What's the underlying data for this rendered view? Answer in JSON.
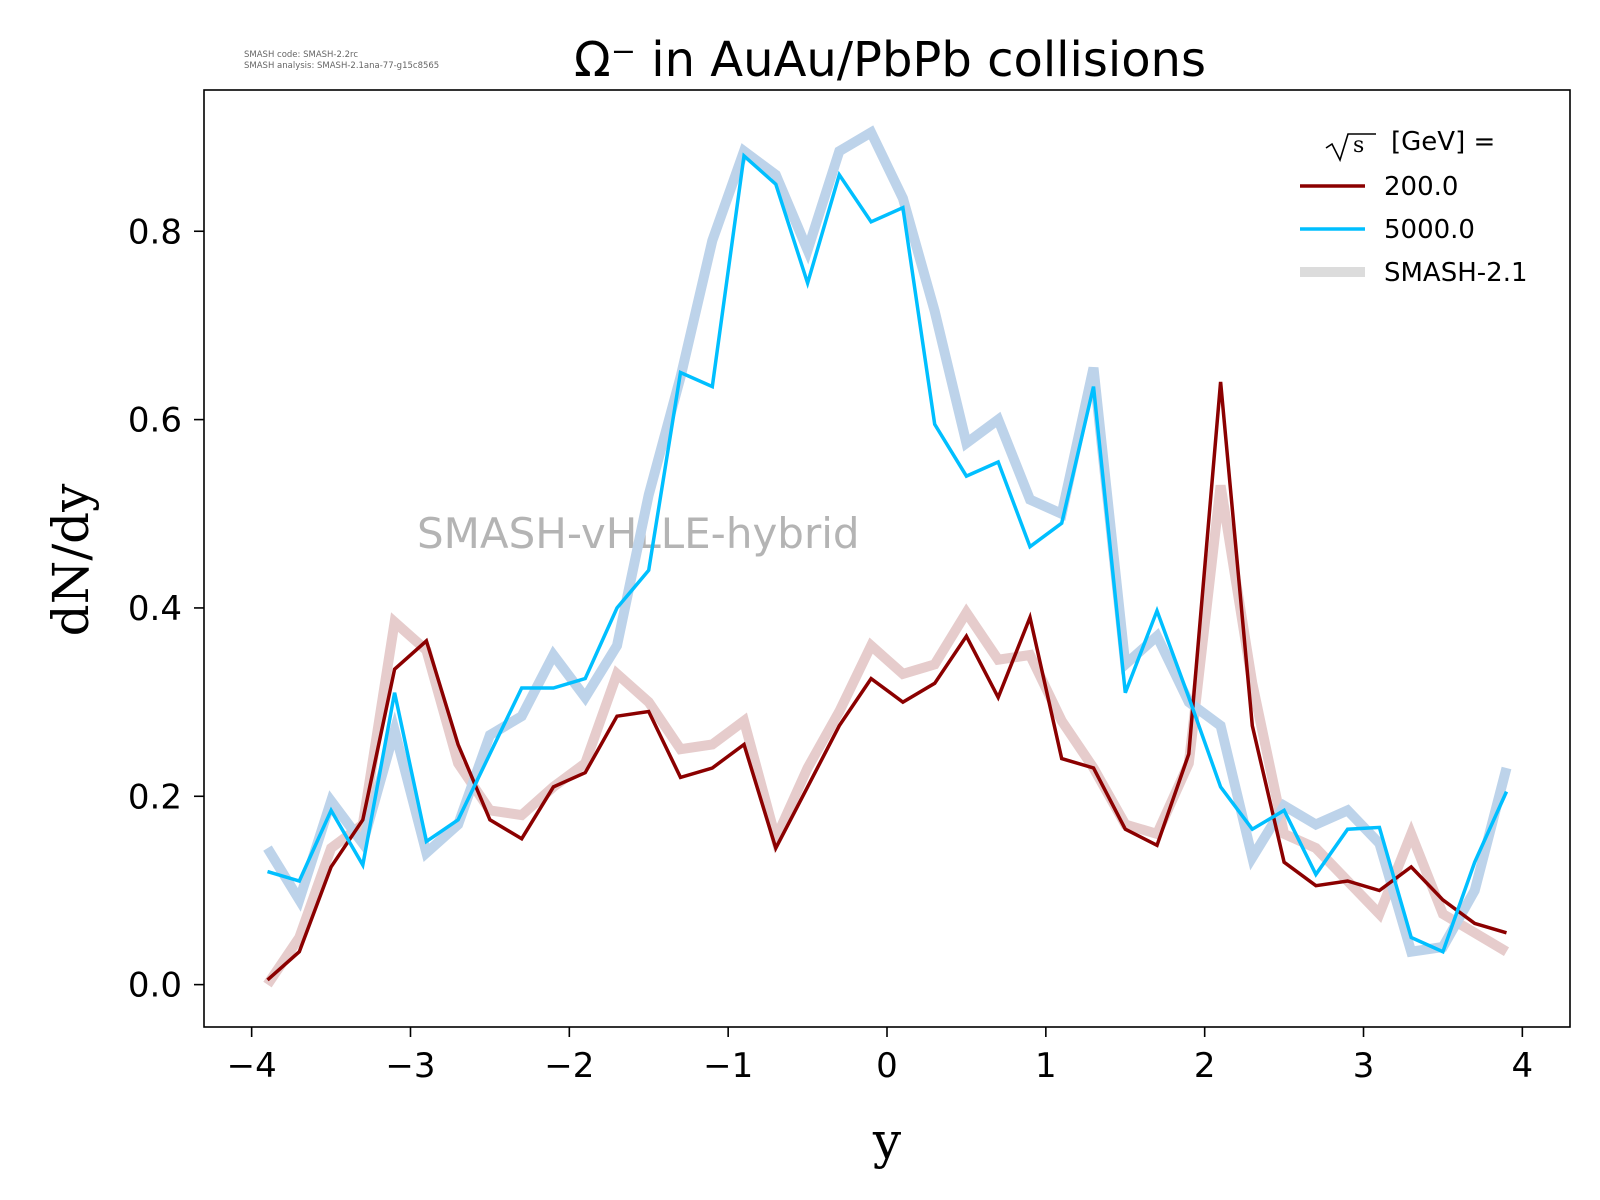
{
  "chart_data": {
    "type": "line",
    "title": "Ω⁻ in AuAu/PbPb collisions",
    "xlabel": "y",
    "ylabel": "dN/dy",
    "xlim": [
      -4.3,
      4.3
    ],
    "ylim": [
      -0.045,
      0.95
    ],
    "xticks": [
      -4,
      -3,
      -2,
      -1,
      0,
      1,
      2,
      3,
      4
    ],
    "xtick_labels": [
      "−4",
      "−3",
      "−2",
      "−1",
      "0",
      "1",
      "2",
      "3",
      "4"
    ],
    "yticks": [
      0.0,
      0.2,
      0.4,
      0.6,
      0.8
    ],
    "ytick_labels": [
      "0.0",
      "0.2",
      "0.4",
      "0.6",
      "0.8"
    ],
    "grid": false,
    "legend_position": "top-right",
    "legend_title": "[GeV] =",
    "legend_title_symbol": "√s",
    "watermark": "SMASH-vHLLE-hybrid",
    "version_lines": [
      "SMASH code:      SMASH-2.2rc",
      "SMASH analysis:  SMASH-2.1ana-77-g15c8565"
    ],
    "x": [
      -3.9,
      -3.7,
      -3.5,
      -3.3,
      -3.1,
      -2.9,
      -2.7,
      -2.5,
      -2.3,
      -2.1,
      -1.9,
      -1.7,
      -1.5,
      -1.3,
      -1.1,
      -0.9,
      -0.7,
      -0.5,
      -0.3,
      -0.1,
      0.1,
      0.3,
      0.5,
      0.7,
      0.9,
      1.1,
      1.3,
      1.5,
      1.7,
      1.9,
      2.1,
      2.3,
      2.5,
      2.7,
      2.9,
      3.1,
      3.3,
      3.5,
      3.7,
      3.9
    ],
    "series": [
      {
        "name": "SMASH-2.1",
        "role": "reference",
        "color": "#e6cccc",
        "values": [
          0.0,
          0.05,
          0.145,
          0.17,
          0.385,
          0.355,
          0.235,
          0.185,
          0.18,
          0.21,
          0.235,
          0.33,
          0.3,
          0.25,
          0.255,
          0.28,
          0.155,
          0.23,
          0.29,
          0.36,
          0.33,
          0.34,
          0.395,
          0.345,
          0.35,
          0.28,
          0.23,
          0.17,
          0.16,
          0.235,
          0.53,
          0.32,
          0.16,
          0.145,
          0.11,
          0.075,
          0.16,
          0.075,
          0.055,
          0.035
        ]
      },
      {
        "name": "SMASH-2.1",
        "role": "reference",
        "color": "#bdd3ea",
        "values": [
          0.145,
          0.09,
          0.195,
          0.15,
          0.27,
          0.14,
          0.17,
          0.265,
          0.285,
          0.35,
          0.305,
          0.36,
          0.52,
          0.645,
          0.79,
          0.885,
          0.86,
          0.78,
          0.885,
          0.905,
          0.835,
          0.715,
          0.575,
          0.6,
          0.515,
          0.5,
          0.655,
          0.34,
          0.37,
          0.3,
          0.275,
          0.135,
          0.19,
          0.17,
          0.185,
          0.15,
          0.035,
          0.04,
          0.1,
          0.23
        ]
      },
      {
        "name": "200.0",
        "color": "#8b0000",
        "values": [
          0.005,
          0.035,
          0.125,
          0.175,
          0.335,
          0.365,
          0.255,
          0.175,
          0.155,
          0.21,
          0.225,
          0.285,
          0.29,
          0.22,
          0.23,
          0.255,
          0.145,
          0.21,
          0.275,
          0.325,
          0.3,
          0.32,
          0.37,
          0.305,
          0.39,
          0.24,
          0.23,
          0.165,
          0.148,
          0.245,
          0.64,
          0.275,
          0.13,
          0.105,
          0.11,
          0.1,
          0.125,
          0.09,
          0.065,
          0.055
        ]
      },
      {
        "name": "5000.0",
        "color": "#00bfff",
        "values": [
          0.12,
          0.11,
          0.185,
          0.127,
          0.31,
          0.152,
          0.175,
          0.245,
          0.315,
          0.315,
          0.325,
          0.4,
          0.44,
          0.65,
          0.635,
          0.88,
          0.85,
          0.745,
          0.86,
          0.81,
          0.825,
          0.595,
          0.54,
          0.555,
          0.465,
          0.49,
          0.635,
          0.31,
          0.397,
          0.305,
          0.21,
          0.165,
          0.185,
          0.117,
          0.165,
          0.167,
          0.05,
          0.035,
          0.13,
          0.205
        ]
      }
    ],
    "legend": [
      {
        "label": "200.0",
        "color": "#8b0000"
      },
      {
        "label": "5000.0",
        "color": "#00bfff"
      },
      {
        "label": "SMASH-2.1",
        "color": "#dcdcdc"
      }
    ]
  }
}
